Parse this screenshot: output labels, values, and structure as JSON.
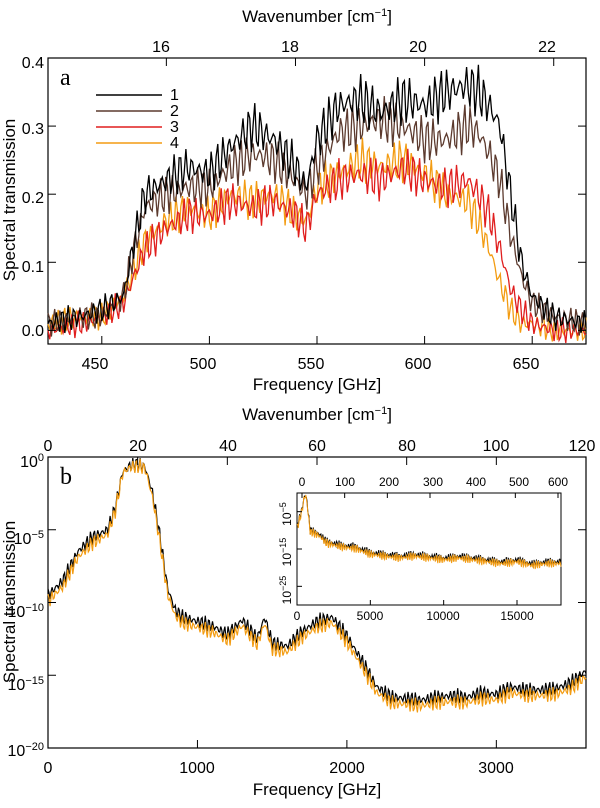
{
  "chart_data": [
    {
      "panel": "a",
      "type": "line",
      "xlabel": "Frequency [GHz]",
      "top_xlabel": "Wavenumber [cm",
      "top_xlabel_exp": "−1",
      "top_xlabel_close": "]",
      "ylabel": "Spectral transmission",
      "xlim": [
        425,
        675
      ],
      "ylim": [
        -0.02,
        0.4
      ],
      "xticks": [
        450,
        500,
        550,
        600,
        650
      ],
      "xtick_labels": [
        "450",
        "500",
        "550",
        "600",
        "650"
      ],
      "yticks": [
        0,
        0.1,
        0.2,
        0.3,
        0.4
      ],
      "ytick_labels": [
        "0.0",
        "0.1",
        "0.2",
        "0.3",
        "0.4"
      ],
      "top_ticks": [
        16,
        18,
        20,
        22
      ],
      "top_tick_labels": [
        "16",
        "18",
        "20",
        "22"
      ],
      "legend_position": "top-left",
      "series": [
        {
          "name": "1",
          "color": "#000000",
          "x": [
            425,
            440,
            450,
            460,
            465,
            470,
            480,
            490,
            500,
            510,
            520,
            530,
            540,
            545,
            550,
            560,
            570,
            580,
            590,
            600,
            610,
            620,
            625,
            630,
            635,
            640,
            645,
            650,
            660,
            675
          ],
          "y": [
            0.01,
            0.02,
            0.03,
            0.05,
            0.13,
            0.2,
            0.22,
            0.24,
            0.23,
            0.27,
            0.3,
            0.28,
            0.24,
            0.21,
            0.28,
            0.33,
            0.34,
            0.32,
            0.34,
            0.33,
            0.35,
            0.36,
            0.35,
            0.33,
            0.3,
            0.2,
            0.1,
            0.05,
            0.02,
            0.01
          ]
        },
        {
          "name": "2",
          "color": "#5c3a2e",
          "x": [
            425,
            440,
            450,
            460,
            465,
            470,
            480,
            490,
            500,
            510,
            520,
            530,
            540,
            545,
            550,
            560,
            570,
            580,
            590,
            600,
            610,
            620,
            625,
            630,
            635,
            640,
            645,
            650,
            660,
            675
          ],
          "y": [
            0.01,
            0.02,
            0.02,
            0.05,
            0.12,
            0.18,
            0.2,
            0.21,
            0.21,
            0.24,
            0.26,
            0.25,
            0.22,
            0.2,
            0.24,
            0.29,
            0.3,
            0.31,
            0.3,
            0.28,
            0.28,
            0.3,
            0.29,
            0.26,
            0.22,
            0.14,
            0.08,
            0.04,
            0.02,
            0.01
          ]
        },
        {
          "name": "3",
          "color": "#e01e1e",
          "x": [
            425,
            440,
            450,
            460,
            465,
            470,
            480,
            490,
            500,
            510,
            520,
            530,
            540,
            545,
            550,
            560,
            570,
            580,
            590,
            600,
            610,
            620,
            625,
            630,
            635,
            640,
            645,
            650,
            660,
            675
          ],
          "y": [
            0.0,
            0.01,
            0.02,
            0.04,
            0.08,
            0.12,
            0.15,
            0.17,
            0.17,
            0.19,
            0.18,
            0.19,
            0.17,
            0.15,
            0.2,
            0.22,
            0.23,
            0.22,
            0.24,
            0.22,
            0.21,
            0.22,
            0.2,
            0.17,
            0.12,
            0.06,
            0.03,
            0.01,
            0.0,
            0.0
          ]
        },
        {
          "name": "4",
          "color": "#f39c12",
          "x": [
            425,
            440,
            450,
            460,
            465,
            470,
            480,
            490,
            500,
            510,
            520,
            530,
            540,
            545,
            550,
            560,
            570,
            580,
            590,
            600,
            610,
            620,
            625,
            630,
            635,
            640,
            645,
            650,
            660,
            675
          ],
          "y": [
            0.01,
            0.02,
            0.02,
            0.05,
            0.09,
            0.13,
            0.16,
            0.18,
            0.17,
            0.2,
            0.19,
            0.2,
            0.17,
            0.16,
            0.21,
            0.23,
            0.25,
            0.24,
            0.25,
            0.23,
            0.2,
            0.19,
            0.16,
            0.12,
            0.07,
            0.03,
            0.01,
            0.01,
            0.0,
            0.0
          ]
        }
      ]
    },
    {
      "panel": "b",
      "type": "line",
      "yscale": "log",
      "xlabel": "Frequency [GHz]",
      "top_xlabel": "Wavenumber [cm",
      "top_xlabel_exp": "−1",
      "top_xlabel_close": "]",
      "ylabel": "Spectral transmission",
      "xlim": [
        0,
        3600
      ],
      "ylim_log10": [
        -20,
        0
      ],
      "xticks": [
        0,
        1000,
        2000,
        3000
      ],
      "xtick_labels": [
        "0",
        "1000",
        "2000",
        "3000"
      ],
      "yticks_log10": [
        0,
        -5,
        -10,
        -15,
        -20
      ],
      "ytick_base": "10",
      "ytick_exponents": [
        "0",
        "−5",
        "−10",
        "−15",
        "−20"
      ],
      "top_ticks": [
        0,
        20,
        40,
        60,
        80,
        100,
        120
      ],
      "top_tick_labels": [
        "0",
        "20",
        "40",
        "60",
        "80",
        "100",
        "120"
      ],
      "series": [
        {
          "name": "1",
          "color": "#000000",
          "x": [
            0,
            100,
            200,
            300,
            400,
            450,
            500,
            550,
            600,
            650,
            700,
            750,
            800,
            850,
            900,
            1000,
            1100,
            1200,
            1300,
            1400,
            1450,
            1500,
            1600,
            1700,
            1800,
            1900,
            2000,
            2100,
            2200,
            2300,
            2400,
            2500,
            2600,
            2700,
            2800,
            2900,
            3000,
            3100,
            3200,
            3300,
            3400,
            3500,
            3600
          ],
          "y_log10": [
            -9.5,
            -8.5,
            -6.5,
            -5.5,
            -5.0,
            -3.5,
            -1.0,
            -0.6,
            -0.5,
            -0.7,
            -2.5,
            -5.5,
            -9.0,
            -10.5,
            -11.0,
            -11.3,
            -11.6,
            -12.2,
            -11.2,
            -12.5,
            -11.0,
            -12.8,
            -13.0,
            -12.0,
            -11.3,
            -11.0,
            -12.3,
            -14.0,
            -15.8,
            -16.5,
            -16.6,
            -16.7,
            -16.5,
            -16.4,
            -16.5,
            -16.2,
            -16.3,
            -15.8,
            -16.0,
            -16.0,
            -15.9,
            -15.5,
            -14.7
          ]
        },
        {
          "name": "4",
          "color": "#f39c12",
          "x": [
            0,
            100,
            200,
            300,
            400,
            450,
            500,
            550,
            600,
            650,
            700,
            750,
            800,
            850,
            900,
            1000,
            1100,
            1200,
            1300,
            1400,
            1450,
            1500,
            1600,
            1700,
            1800,
            1900,
            2000,
            2100,
            2200,
            2300,
            2400,
            2500,
            2600,
            2700,
            2800,
            2900,
            3000,
            3100,
            3200,
            3300,
            3400,
            3500,
            3600
          ],
          "y_log10": [
            -9.9,
            -8.9,
            -6.9,
            -5.9,
            -5.3,
            -3.7,
            -1.1,
            -0.7,
            -0.6,
            -0.8,
            -2.8,
            -5.9,
            -9.4,
            -10.9,
            -11.4,
            -11.7,
            -12.0,
            -12.6,
            -11.6,
            -12.9,
            -11.4,
            -13.2,
            -13.4,
            -12.4,
            -11.7,
            -11.4,
            -12.7,
            -14.4,
            -16.2,
            -16.9,
            -17.0,
            -17.1,
            -16.9,
            -16.8,
            -16.9,
            -16.6,
            -16.7,
            -16.2,
            -16.4,
            -16.4,
            -16.3,
            -15.9,
            -15.1
          ]
        }
      ],
      "inset": {
        "xlim": [
          0,
          18000
        ],
        "ylim_log10": [
          -30,
          0
        ],
        "xticks": [
          0,
          5000,
          10000,
          15000
        ],
        "xtick_labels": [
          "0",
          "5000",
          "10000",
          "15000"
        ],
        "top_ticks": [
          0,
          100,
          200,
          300,
          400,
          500,
          600
        ],
        "top_tick_labels": [
          "0",
          "100",
          "200",
          "300",
          "400",
          "500",
          "600"
        ],
        "yticks_log10": [
          -5,
          -15,
          -25
        ],
        "ytick_base": "10",
        "ytick_exponents": [
          "−5",
          "−15",
          "−25"
        ],
        "series": [
          {
            "name": "1",
            "color": "#000000",
            "x": [
              0,
              300,
              500,
              600,
              700,
              900,
              1500,
              2000,
              2500,
              3000,
              4000,
              5000,
              6000,
              7000,
              8000,
              9000,
              10000,
              11000,
              12000,
              13000,
              14000,
              15000,
              16000,
              17000,
              18000
            ],
            "y_log10": [
              -9,
              -5,
              -1,
              -0.5,
              -3,
              -10,
              -11,
              -13,
              -13.5,
              -14,
              -14.5,
              -16,
              -16.5,
              -17,
              -16.5,
              -17,
              -17.5,
              -17,
              -17.5,
              -18,
              -18.5,
              -18,
              -19,
              -18.5,
              -18.5
            ]
          },
          {
            "name": "4",
            "color": "#f39c12",
            "x": [
              0,
              300,
              500,
              600,
              700,
              900,
              1500,
              2000,
              2500,
              3000,
              4000,
              5000,
              6000,
              7000,
              8000,
              9000,
              10000,
              11000,
              12000,
              13000,
              14000,
              15000,
              16000,
              17000,
              18000
            ],
            "y_log10": [
              -9.4,
              -5.4,
              -1.2,
              -0.7,
              -3.4,
              -10.4,
              -11.4,
              -13.4,
              -13.9,
              -14.4,
              -14.9,
              -16.4,
              -16.9,
              -17.4,
              -16.9,
              -17.4,
              -17.9,
              -17.4,
              -17.9,
              -18.4,
              -18.9,
              -18.4,
              -19.4,
              -18.9,
              -18.9
            ]
          }
        ]
      }
    }
  ]
}
